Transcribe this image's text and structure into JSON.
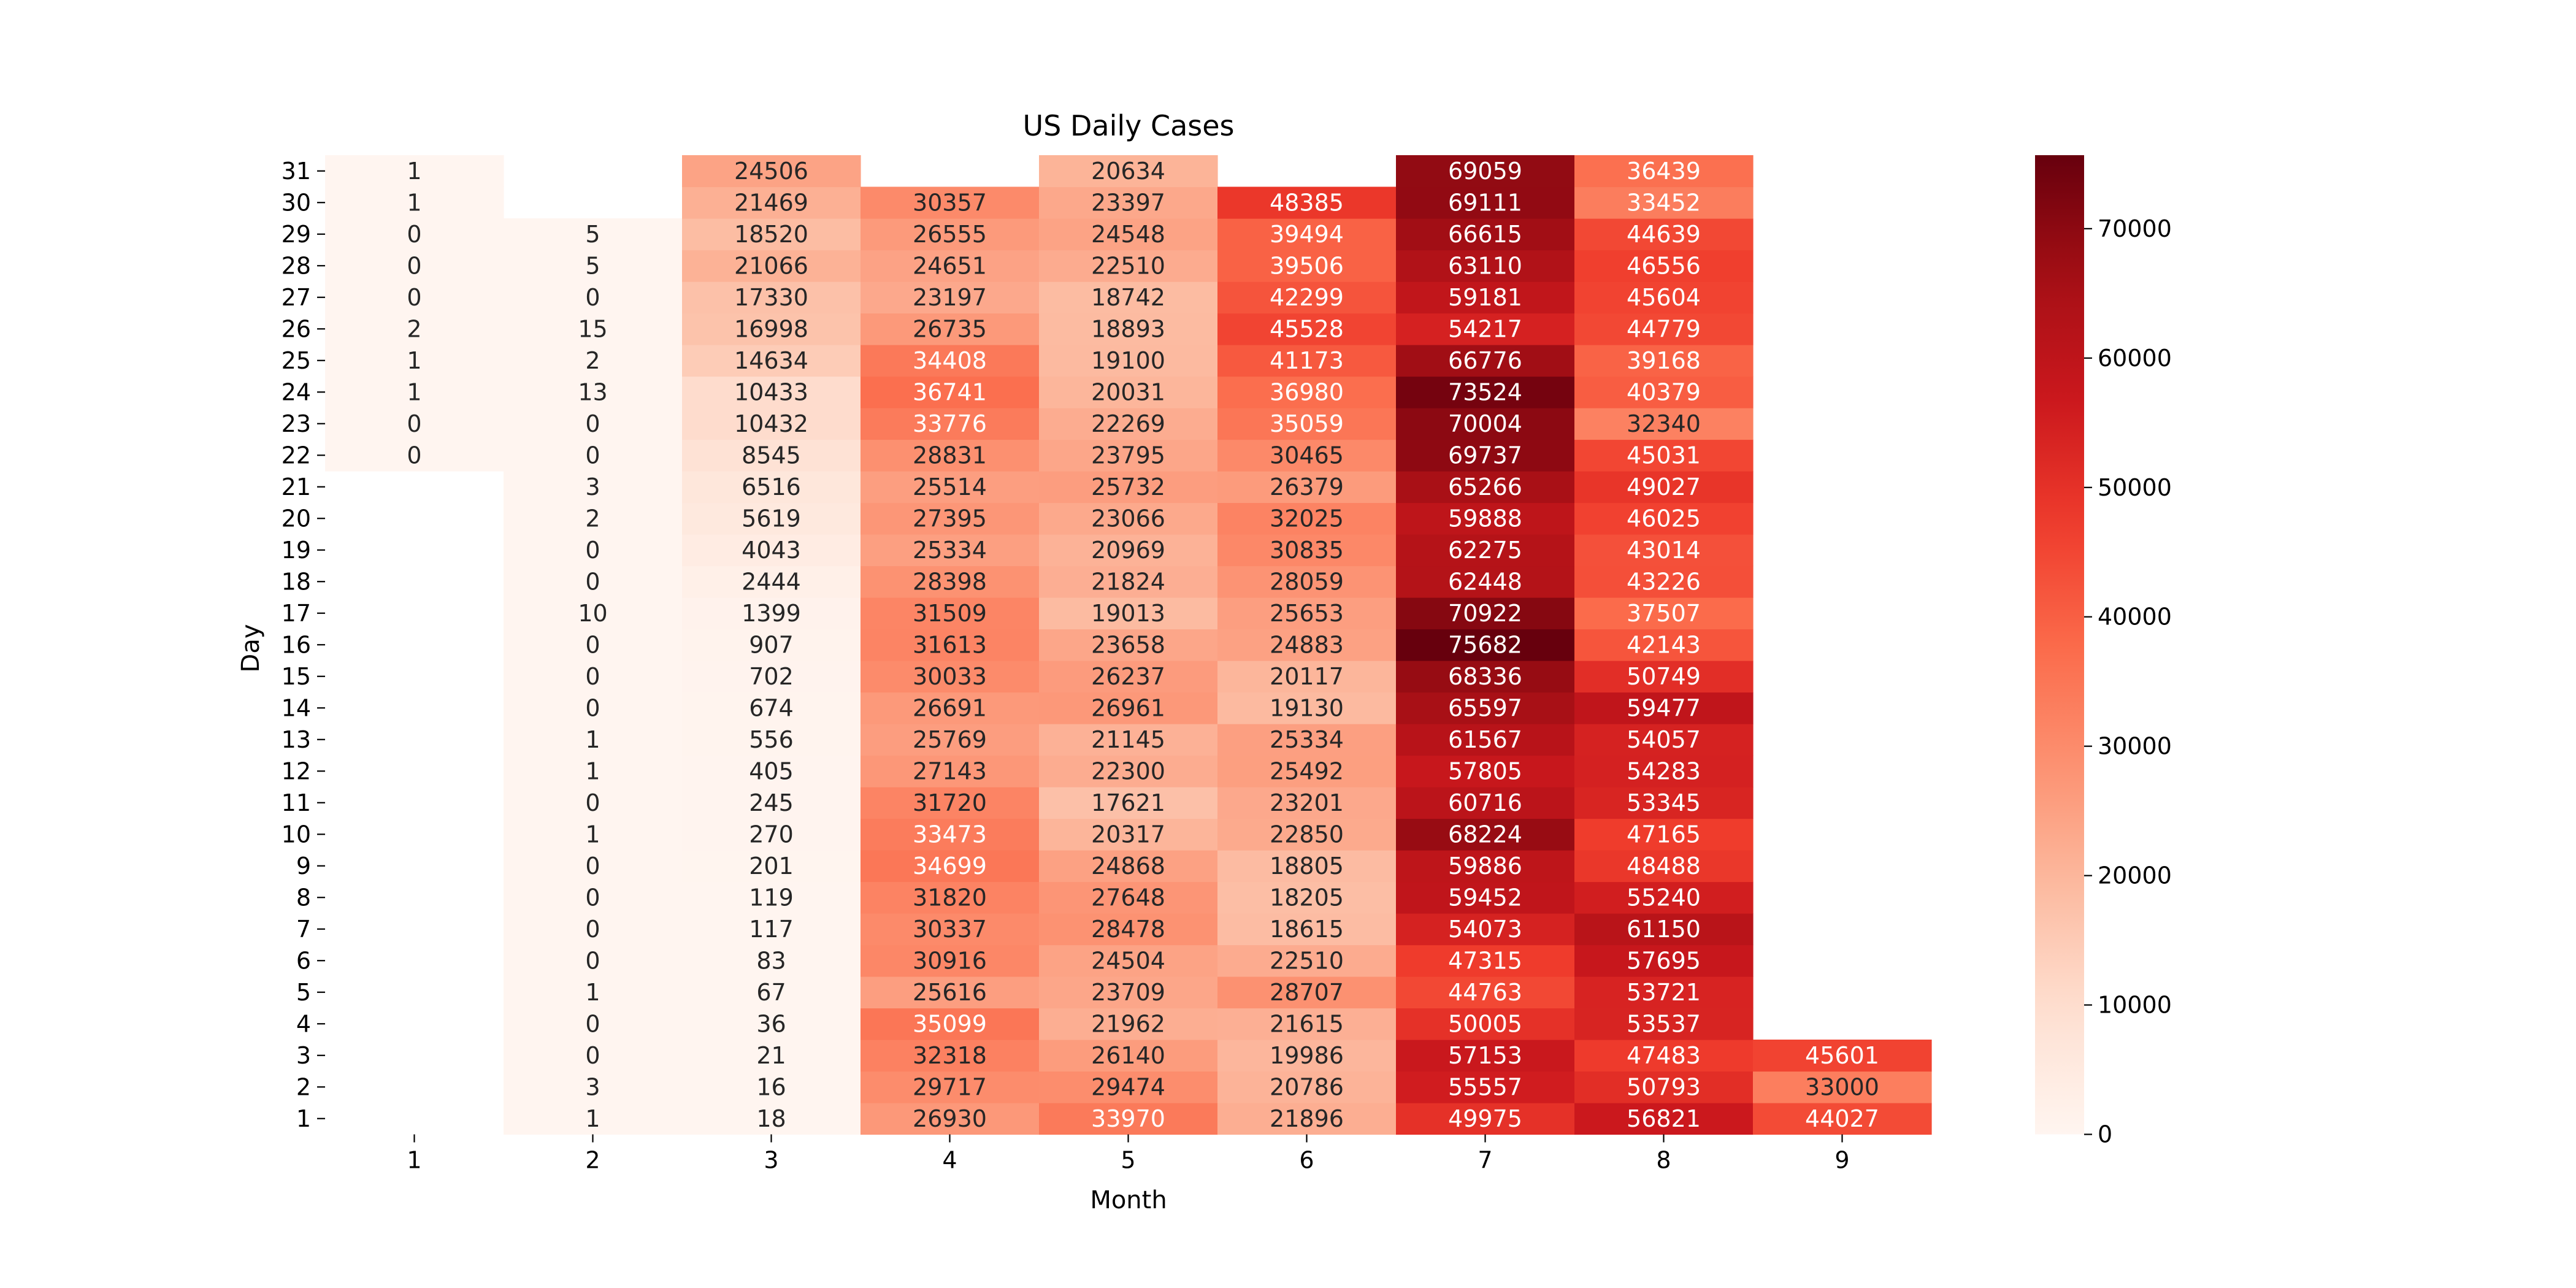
{
  "chart_data": {
    "type": "heatmap",
    "title": "US Daily Cases",
    "xlabel": "Month",
    "ylabel": "Day",
    "x": [
      "1",
      "2",
      "3",
      "4",
      "5",
      "6",
      "7",
      "8",
      "9"
    ],
    "y": [
      "1",
      "2",
      "3",
      "4",
      "5",
      "6",
      "7",
      "8",
      "9",
      "10",
      "11",
      "12",
      "13",
      "14",
      "15",
      "16",
      "17",
      "18",
      "19",
      "20",
      "21",
      "22",
      "23",
      "24",
      "25",
      "26",
      "27",
      "28",
      "29",
      "30",
      "31"
    ],
    "colormap": "Reds",
    "vmin": 0,
    "vmax": 75682,
    "colorbar_ticks": [
      0,
      10000,
      20000,
      30000,
      40000,
      50000,
      60000,
      70000
    ],
    "colorbar": true,
    "values": [
      [
        null,
        null,
        null,
        null,
        null,
        null,
        null,
        null,
        null,
        null,
        null,
        null,
        null,
        null,
        null,
        null,
        null,
        null,
        null,
        null,
        null,
        0,
        0,
        1,
        1,
        2,
        0,
        0,
        0,
        1,
        1
      ],
      [
        1,
        3,
        0,
        0,
        1,
        0,
        0,
        0,
        0,
        1,
        0,
        1,
        1,
        0,
        0,
        0,
        10,
        0,
        0,
        2,
        3,
        0,
        0,
        13,
        2,
        15,
        0,
        5,
        5,
        null,
        null
      ],
      [
        18,
        16,
        21,
        36,
        67,
        83,
        117,
        119,
        201,
        270,
        245,
        405,
        556,
        674,
        702,
        907,
        1399,
        2444,
        4043,
        5619,
        6516,
        8545,
        10432,
        10433,
        14634,
        16998,
        17330,
        21066,
        18520,
        21469,
        24506
      ],
      [
        26930,
        29717,
        32318,
        35099,
        25616,
        30916,
        30337,
        31820,
        34699,
        33473,
        31720,
        27143,
        25769,
        26691,
        30033,
        31613,
        31509,
        28398,
        25334,
        27395,
        25514,
        28831,
        33776,
        36741,
        34408,
        26735,
        23197,
        24651,
        26555,
        30357,
        null
      ],
      [
        33970,
        29474,
        26140,
        21962,
        23709,
        24504,
        28478,
        27648,
        24868,
        20317,
        17621,
        22300,
        21145,
        26961,
        26237,
        23658,
        19013,
        21824,
        20969,
        23066,
        25732,
        23795,
        22269,
        20031,
        19100,
        18893,
        18742,
        22510,
        24548,
        23397,
        20634
      ],
      [
        21896,
        20786,
        19986,
        21615,
        28707,
        22510,
        18615,
        18205,
        18805,
        22850,
        23201,
        25492,
        25334,
        19130,
        20117,
        24883,
        25653,
        28059,
        30835,
        32025,
        26379,
        30465,
        35059,
        36980,
        41173,
        45528,
        42299,
        39506,
        39494,
        48385,
        null
      ],
      [
        49975,
        55557,
        57153,
        50005,
        44763,
        47315,
        54073,
        59452,
        59886,
        68224,
        60716,
        57805,
        61567,
        65597,
        68336,
        75682,
        70922,
        62448,
        62275,
        59888,
        65266,
        69737,
        70004,
        73524,
        66776,
        54217,
        59181,
        63110,
        66615,
        69111,
        69059
      ],
      [
        56821,
        50793,
        47483,
        53537,
        53721,
        57695,
        61150,
        55240,
        48488,
        47165,
        53345,
        54283,
        54057,
        59477,
        50749,
        42143,
        37507,
        43226,
        43014,
        46025,
        49027,
        45031,
        32340,
        40379,
        39168,
        44779,
        45604,
        46556,
        44639,
        33452,
        36439
      ],
      [
        44027,
        33000,
        45601,
        null,
        null,
        null,
        null,
        null,
        null,
        null,
        null,
        null,
        null,
        null,
        null,
        null,
        null,
        null,
        null,
        null,
        null,
        null,
        null,
        null,
        null,
        null,
        null,
        null,
        null,
        null,
        null
      ]
    ]
  }
}
